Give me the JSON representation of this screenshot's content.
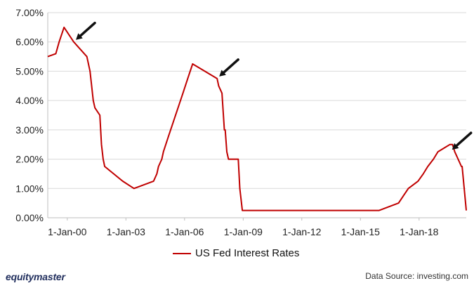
{
  "chart_data": {
    "type": "line",
    "title": "",
    "xlabel": "",
    "ylabel": "",
    "x_tick_labels": [
      "1-Jan-00",
      "1-Jan-03",
      "1-Jan-06",
      "1-Jan-09",
      "1-Jan-12",
      "1-Jan-15",
      "1-Jan-18"
    ],
    "y_tick_labels": [
      "0.00%",
      "1.00%",
      "2.00%",
      "3.00%",
      "4.00%",
      "5.00%",
      "6.00%",
      "7.00%"
    ],
    "ylim": [
      0,
      7
    ],
    "xlim": [
      "1999-01-01",
      "2020-06-01"
    ],
    "grid": "horizontal",
    "series": [
      {
        "name": "US Fed Interest Rates",
        "color": "#c00000",
        "x": [
          "1999-01-01",
          "1999-06-01",
          "1999-08-01",
          "1999-11-01",
          "2000-05-01",
          "2001-01-01",
          "2001-03-01",
          "2001-05-01",
          "2001-06-01",
          "2001-09-01",
          "2001-10-01",
          "2001-11-01",
          "2001-12-01",
          "2002-11-01",
          "2003-06-01",
          "2004-06-01",
          "2004-08-01",
          "2004-09-01",
          "2004-11-01",
          "2004-12-01",
          "2005-03-01",
          "2005-06-01",
          "2005-09-01",
          "2005-12-01",
          "2006-03-01",
          "2006-06-01",
          "2007-09-01",
          "2007-10-01",
          "2007-12-01",
          "2008-01-15",
          "2008-01-31",
          "2008-03-01",
          "2008-04-01",
          "2008-10-01",
          "2008-10-29",
          "2008-12-16",
          "2015-12-16",
          "2016-12-14",
          "2017-03-15",
          "2017-06-14",
          "2017-12-13",
          "2018-03-21",
          "2018-06-13",
          "2018-09-26",
          "2018-12-19",
          "2019-07-31",
          "2019-09-18",
          "2019-10-30",
          "2020-03-03",
          "2020-03-15",
          "2020-06-01"
        ],
        "values": [
          5.5,
          5.6,
          6.0,
          6.5,
          6.0,
          5.5,
          5.0,
          4.0,
          3.75,
          3.5,
          2.5,
          2.0,
          1.75,
          1.25,
          1.0,
          1.25,
          1.5,
          1.75,
          2.0,
          2.25,
          2.75,
          3.25,
          3.75,
          4.25,
          4.75,
          5.25,
          4.75,
          4.5,
          4.25,
          3.0,
          3.0,
          2.25,
          2.0,
          2.0,
          1.0,
          0.25,
          0.25,
          0.5,
          0.75,
          1.0,
          1.25,
          1.5,
          1.75,
          2.0,
          2.25,
          2.5,
          2.5,
          2.25,
          1.75,
          1.75,
          0.25
        ]
      }
    ],
    "annotations": [
      {
        "type": "arrow",
        "color": "#111111",
        "points_to_x": "2000-05-01",
        "points_to_y": 6.0
      },
      {
        "type": "arrow",
        "color": "#111111",
        "points_to_x": "2007-09-01",
        "points_to_y": 4.75
      },
      {
        "type": "arrow",
        "color": "#111111",
        "points_to_x": "2019-07-31",
        "points_to_y": 2.25
      }
    ]
  },
  "legend": {
    "label": "US Fed Interest Rates"
  },
  "brand": "equitymaster",
  "source": "Data Source: investing.com"
}
